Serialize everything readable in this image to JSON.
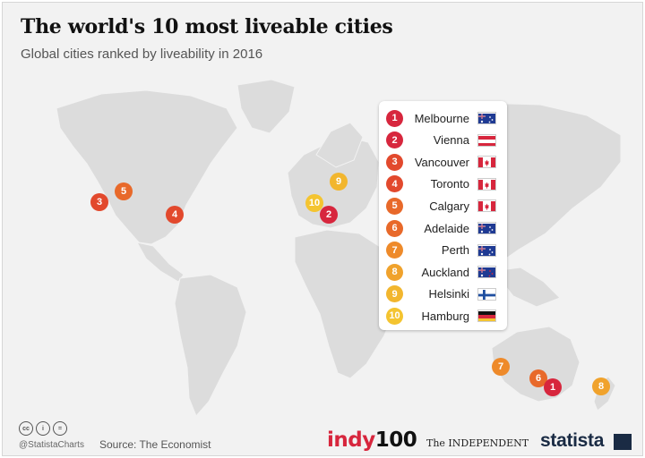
{
  "header": {
    "title": "The world's 10 most liveable cities",
    "subtitle": "Global cities ranked by liveability in 2016"
  },
  "legend": [
    {
      "rank": "1",
      "city": "Melbourne",
      "flag": "australia-flag",
      "color": "#d7263d"
    },
    {
      "rank": "2",
      "city": "Vienna",
      "flag": "austria-flag",
      "color": "#d7263d"
    },
    {
      "rank": "3",
      "city": "Vancouver",
      "flag": "canada-flag",
      "color": "#e2492d"
    },
    {
      "rank": "4",
      "city": "Toronto",
      "flag": "canada-flag",
      "color": "#e2492d"
    },
    {
      "rank": "5",
      "city": "Calgary",
      "flag": "canada-flag",
      "color": "#e8692a"
    },
    {
      "rank": "6",
      "city": "Adelaide",
      "flag": "australia-flag",
      "color": "#e8692a"
    },
    {
      "rank": "7",
      "city": "Perth",
      "flag": "australia-flag",
      "color": "#ee8a2a"
    },
    {
      "rank": "8",
      "city": "Auckland",
      "flag": "new-zealand-flag",
      "color": "#f0a22c"
    },
    {
      "rank": "9",
      "city": "Helsinki",
      "flag": "finland-flag",
      "color": "#f2b62e"
    },
    {
      "rank": "10",
      "city": "Hamburg",
      "flag": "germany-flag",
      "color": "#f4c430"
    }
  ],
  "map_markers": [
    {
      "rank": "3",
      "color": "#e2492d"
    },
    {
      "rank": "5",
      "color": "#e8692a"
    },
    {
      "rank": "4",
      "color": "#e2492d"
    },
    {
      "rank": "9",
      "color": "#f2b62e"
    },
    {
      "rank": "10",
      "color": "#f4c430"
    },
    {
      "rank": "2",
      "color": "#d7263d"
    },
    {
      "rank": "7",
      "color": "#ee8a2a"
    },
    {
      "rank": "6",
      "color": "#e8692a"
    },
    {
      "rank": "1",
      "color": "#d7263d"
    },
    {
      "rank": "8",
      "color": "#f0a22c"
    }
  ],
  "footer": {
    "license_icons": [
      "cc",
      "i",
      "="
    ],
    "handle": "@StatistaCharts",
    "source": "Source: The Economist",
    "indy_brand": "indy",
    "indy_num": "100",
    "independent_brand": "The INDEPENDENT",
    "statista_brand": "statista"
  }
}
